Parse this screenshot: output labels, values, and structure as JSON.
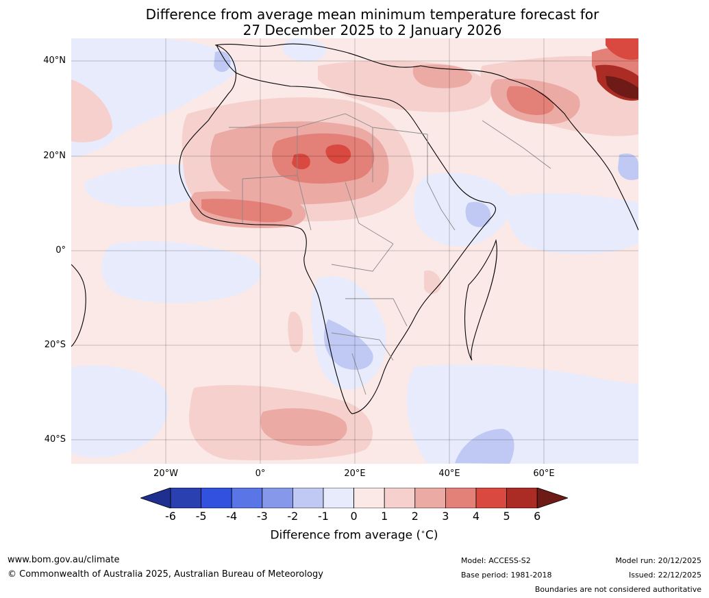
{
  "title": {
    "line1": "Difference from average mean minimum temperature forecast for",
    "line2": "27 December 2025 to 2 January 2026"
  },
  "axes": {
    "lat_labels": [
      "40°N",
      "20°N",
      "0°",
      "20°S",
      "40°S"
    ],
    "lon_labels": [
      "20°W",
      "0°",
      "20°E",
      "40°E",
      "60°E"
    ]
  },
  "legend": {
    "ticks": [
      "-6",
      "-5",
      "-4",
      "-3",
      "-2",
      "-1",
      "0",
      "1",
      "2",
      "3",
      "4",
      "5",
      "6"
    ],
    "label": "Difference from average (",
    "label_unit": "∘",
    "label_end": "C)",
    "colors": [
      "#1f2f8f",
      "#2a3fb0",
      "#3151de",
      "#5a76e6",
      "#8598ea",
      "#c0c9f4",
      "#e8ebfb",
      "#fbe9e7",
      "#f5d0cc",
      "#ecaaa5",
      "#e38078",
      "#d9493f",
      "#ab2c24",
      "#6e1a16"
    ]
  },
  "footer": {
    "website": "www.bom.gov.au/climate",
    "copyright": "© Commonwealth of Australia 2025, Australian Bureau of Meteorology",
    "model": "Model: ACCESS-S2",
    "base_period": "Base period: 1981-2018",
    "model_run": "Model run: 20/12/2025",
    "issued": "Issued: 22/12/2025",
    "disclaimer": "Boundaries are not considered authoritative"
  }
}
